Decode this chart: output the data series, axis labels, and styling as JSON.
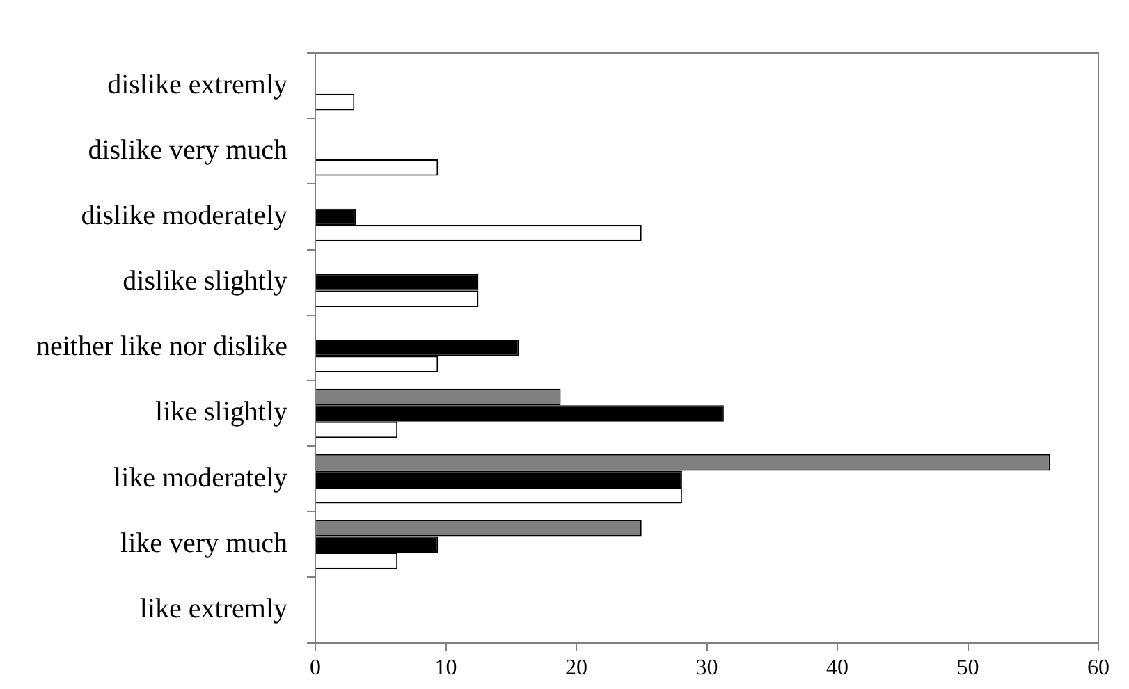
{
  "chart_data": {
    "type": "bar",
    "orientation": "horizontal",
    "categories": [
      "dislike extremly",
      "dislike very much",
      "dislike moderately",
      "dislike slightly",
      "neither like nor dislike",
      "like slightly",
      "like moderately",
      "like very much",
      "like extremly"
    ],
    "series": [
      {
        "color": "#808080",
        "values": [
          null,
          null,
          null,
          null,
          null,
          18.8,
          56.3,
          25.0,
          null
        ]
      },
      {
        "color": "#000000",
        "values": [
          null,
          null,
          3.1,
          12.5,
          15.6,
          31.3,
          28.1,
          9.4,
          null
        ]
      },
      {
        "color": "#ffffff",
        "values": [
          3.0,
          9.4,
          25.0,
          12.5,
          9.4,
          6.3,
          28.1,
          6.3,
          null
        ]
      }
    ],
    "xlim": [
      0,
      60
    ],
    "xticks": [
      0,
      10,
      20,
      30,
      40,
      50,
      60
    ],
    "grid": false,
    "legend": false
  }
}
